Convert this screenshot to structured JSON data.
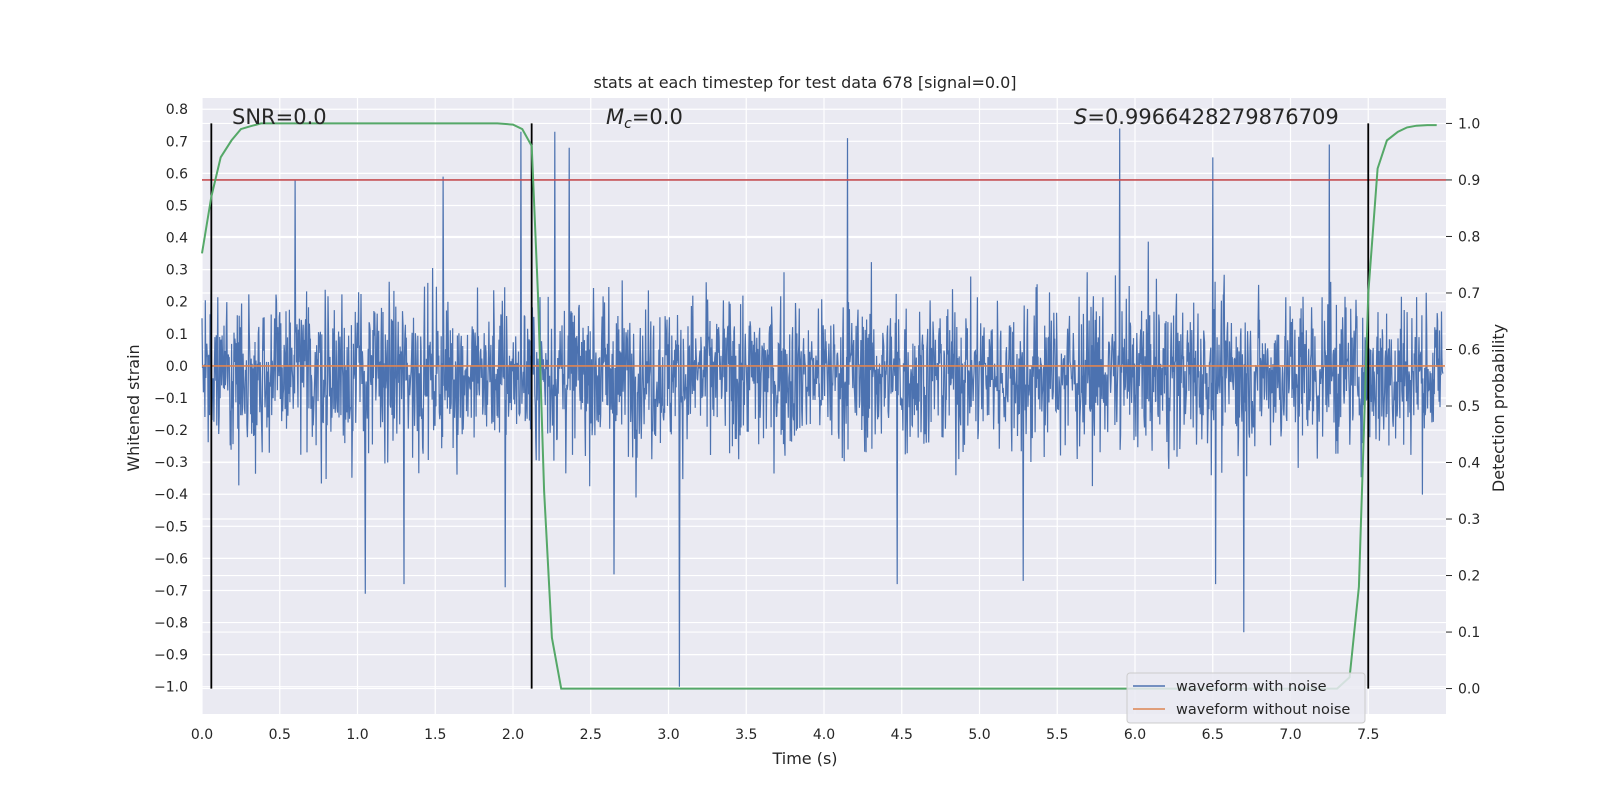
{
  "chart_data": {
    "type": "line",
    "title": "stats at each timestep for test data 678 [signal=0.0]",
    "xlabel": "Time (s)",
    "ylabel": "Whitened strain",
    "y2label": "Detection probability",
    "xlim": [
      0.0,
      8.0
    ],
    "ylim": [
      -1.085,
      0.835
    ],
    "y2lim": [
      -0.045,
      1.045
    ],
    "grid": true,
    "x_ticks": [
      "0.0",
      "0.5",
      "1.0",
      "1.5",
      "2.0",
      "2.5",
      "3.0",
      "3.5",
      "4.0",
      "4.5",
      "5.0",
      "5.5",
      "6.0",
      "6.5",
      "7.0",
      "7.5"
    ],
    "y_ticks": [
      "0.8",
      "0.7",
      "0.6",
      "0.5",
      "0.4",
      "0.3",
      "0.2",
      "0.1",
      "0.0",
      "−0.1",
      "−0.2",
      "−0.3",
      "−0.4",
      "−0.5",
      "−0.6",
      "−0.7",
      "−0.8",
      "−0.9",
      "−1.0"
    ],
    "y2_ticks": [
      "1.0",
      "0.9",
      "0.8",
      "0.7",
      "0.6",
      "0.5",
      "0.4",
      "0.3",
      "0.2",
      "0.1",
      "0.0"
    ],
    "annotations": {
      "snr": "SNR=0.0",
      "mc_symbol": "M",
      "mc_sub": "c",
      "mc_value": "=0.0",
      "s_symbol": "S",
      "s_value": "=0.9966428279876709"
    },
    "threshold": {
      "y2": 0.9,
      "color": "#c44e52"
    },
    "vertical_lines_x": [
      0.06,
      2.12,
      7.5
    ],
    "detection_probability": {
      "color": "#55a868",
      "x": [
        0.0,
        0.06,
        0.12,
        0.19,
        0.25,
        0.31,
        0.38,
        0.5,
        1.0,
        1.5,
        1.9,
        2.0,
        2.06,
        2.12,
        2.16,
        2.2,
        2.25,
        2.31,
        2.38,
        3.0,
        4.0,
        5.0,
        6.0,
        7.0,
        7.3,
        7.38,
        7.44,
        7.5,
        7.56,
        7.62,
        7.69,
        7.75,
        7.81,
        7.88,
        7.94
      ],
      "y": [
        0.77,
        0.87,
        0.94,
        0.97,
        0.99,
        0.995,
        1.0,
        1.0,
        1.0,
        1.0,
        1.0,
        0.998,
        0.99,
        0.96,
        0.7,
        0.35,
        0.09,
        0.0,
        0.0,
        0.0,
        0.0,
        0.0,
        0.0,
        0.0,
        0.0,
        0.02,
        0.18,
        0.7,
        0.92,
        0.97,
        0.985,
        0.993,
        0.996,
        0.997,
        0.997
      ]
    },
    "series": [
      {
        "name": "waveform with noise",
        "color": "#4c72b0",
        "style": "dense noise trace",
        "typical_range": [
          -0.3,
          0.25
        ],
        "peaks": [
          {
            "x": 0.6,
            "y": 0.58
          },
          {
            "x": 1.55,
            "y": 0.59
          },
          {
            "x": 2.05,
            "y": 0.73
          },
          {
            "x": 2.27,
            "y": 0.73
          },
          {
            "x": 2.36,
            "y": 0.68
          },
          {
            "x": 4.15,
            "y": 0.71
          },
          {
            "x": 5.9,
            "y": 0.74
          },
          {
            "x": 6.5,
            "y": 0.65
          },
          {
            "x": 7.25,
            "y": 0.69
          }
        ],
        "troughs": [
          {
            "x": 1.05,
            "y": -0.71
          },
          {
            "x": 1.3,
            "y": -0.68
          },
          {
            "x": 1.95,
            "y": -0.69
          },
          {
            "x": 2.65,
            "y": -0.65
          },
          {
            "x": 3.07,
            "y": -1.0
          },
          {
            "x": 4.47,
            "y": -0.68
          },
          {
            "x": 5.28,
            "y": -0.67
          },
          {
            "x": 6.52,
            "y": -0.68
          },
          {
            "x": 6.7,
            "y": -0.83
          }
        ]
      },
      {
        "name": "waveform without noise",
        "color": "#dd8452",
        "x": [
          0.0,
          8.0
        ],
        "y": [
          0.0,
          0.0
        ]
      }
    ],
    "legend": {
      "position": "lower-right"
    }
  }
}
